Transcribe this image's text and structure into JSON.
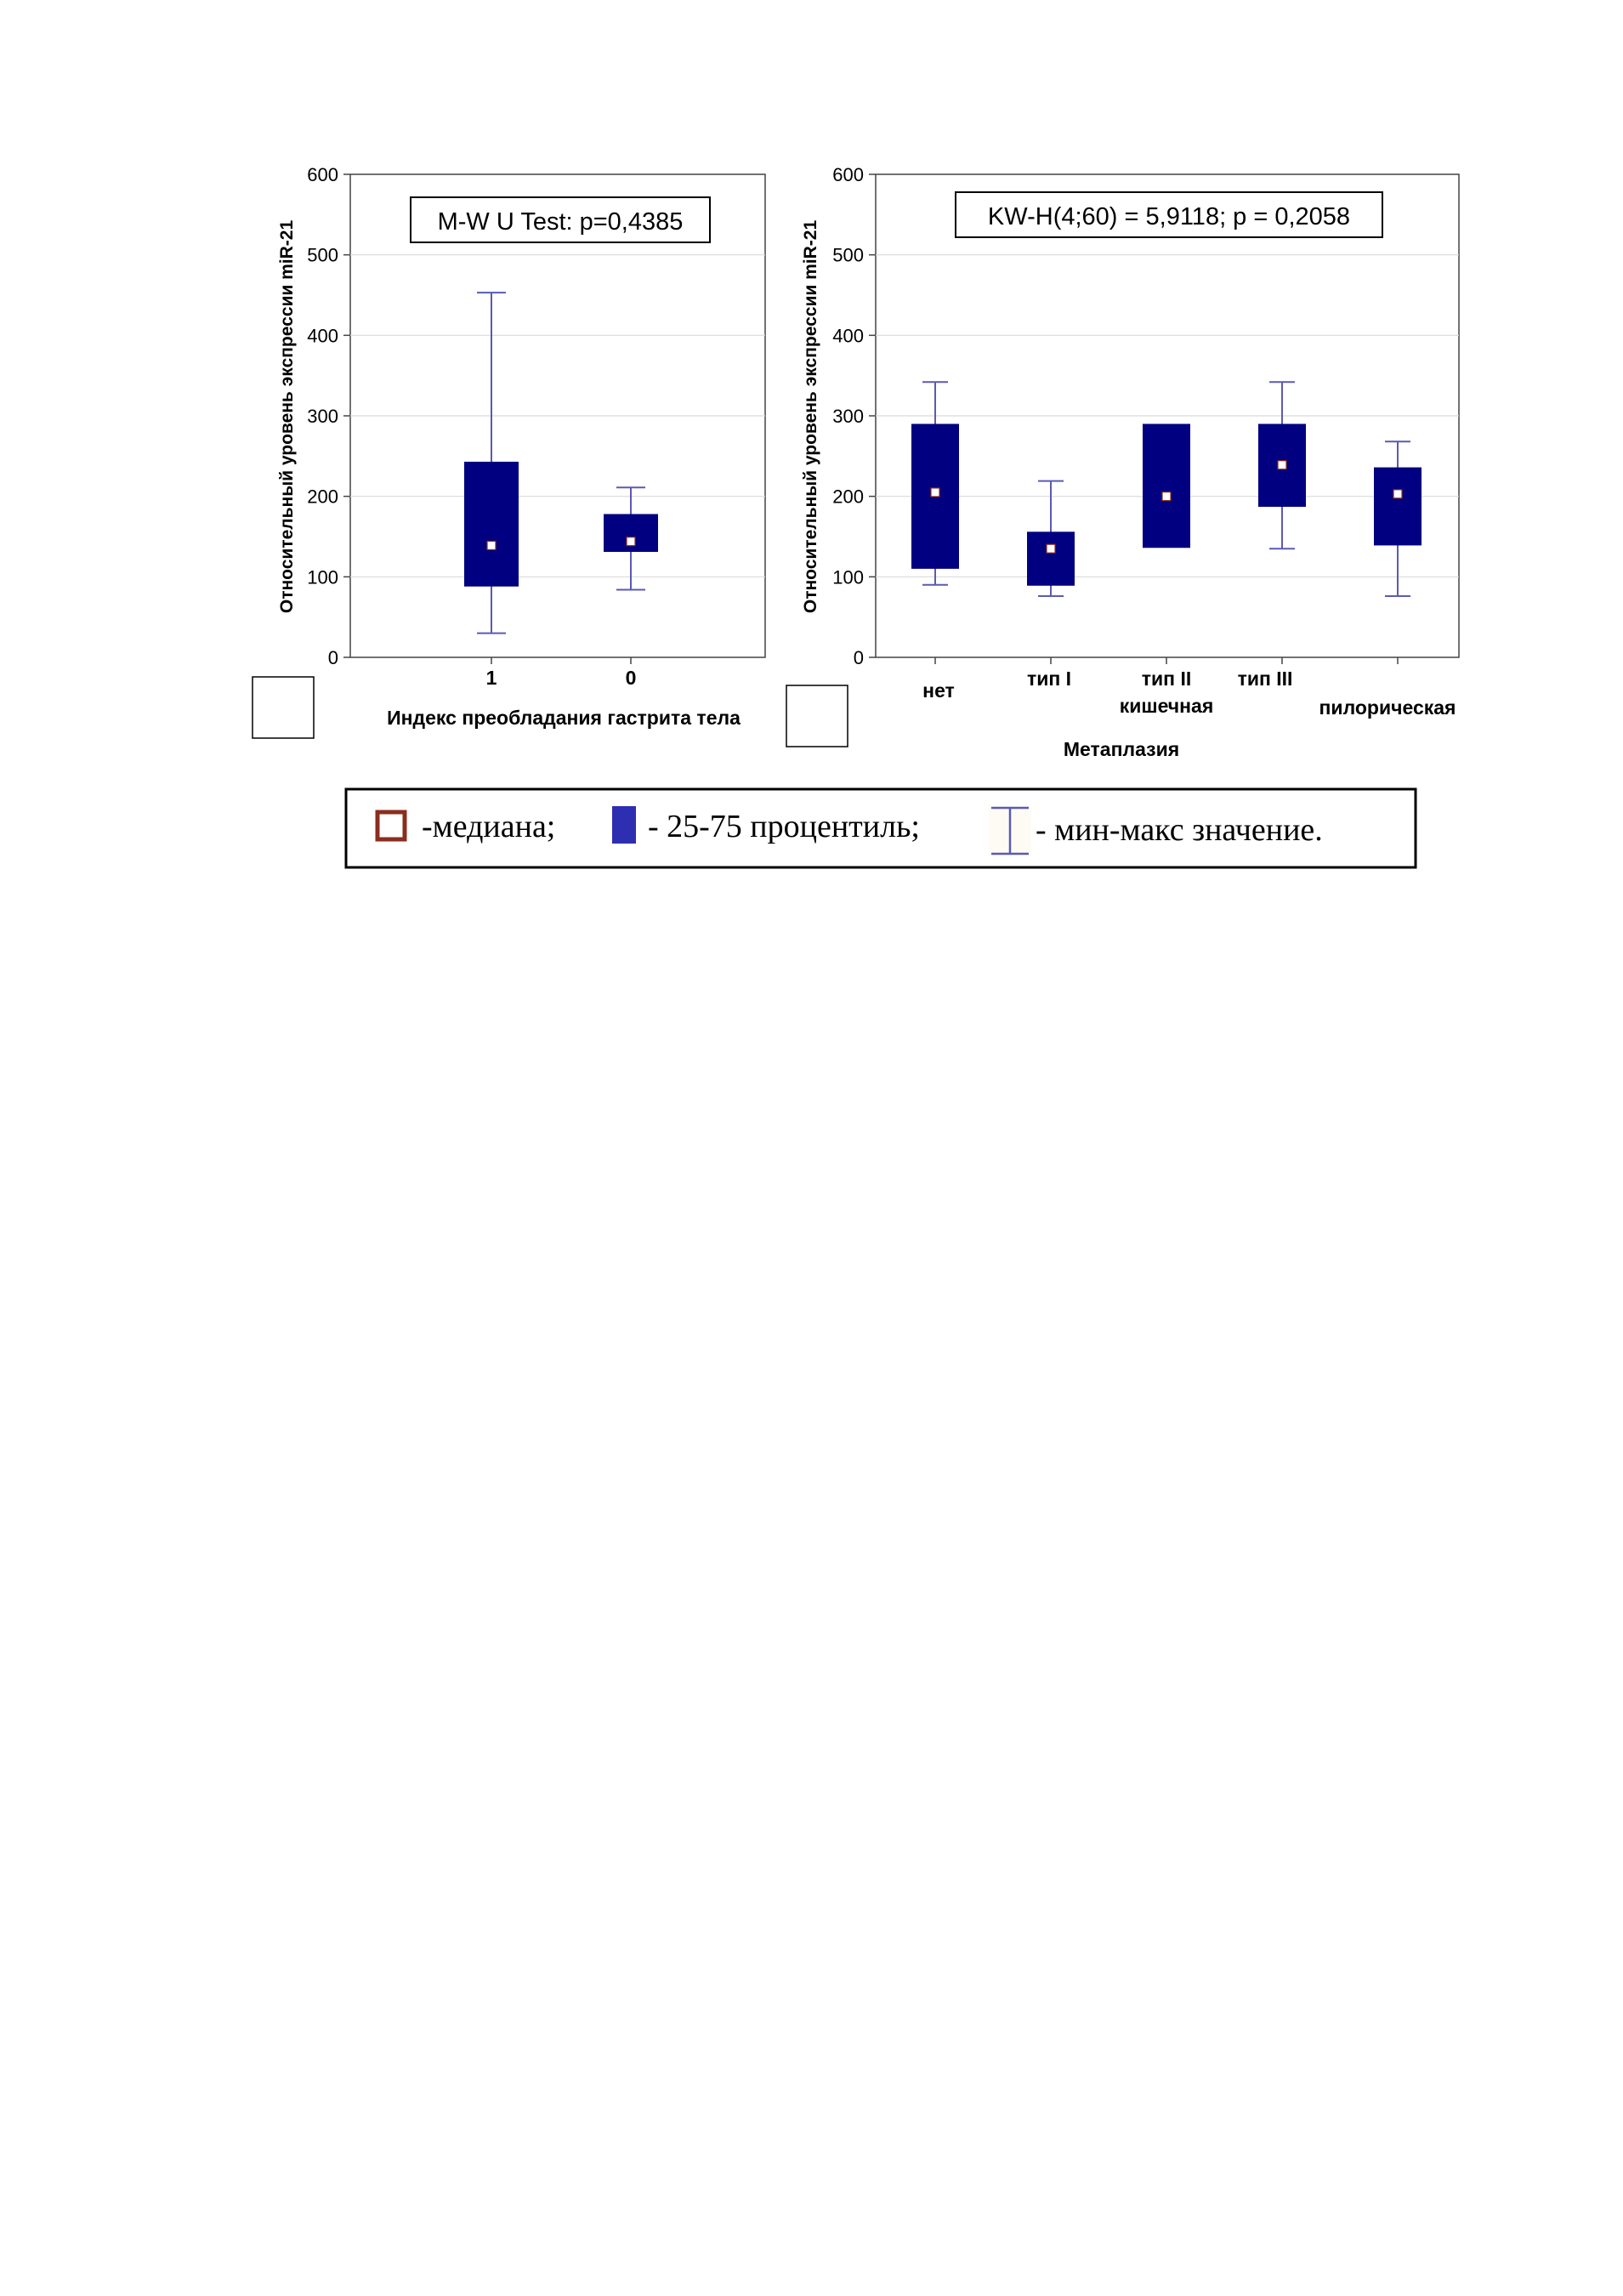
{
  "colors": {
    "box_fill": "#000080",
    "whisker": "#5a5ab4",
    "median_fill": "#ffffff",
    "median_border": "#8b2d1d",
    "legend_box_fill": "#2e2eb0",
    "grid": "#d9d9d9",
    "axis": "#444444",
    "text": "#000000"
  },
  "chart_data": [
    {
      "type": "box",
      "xlabel": "Индекс преобладания гастрита тела",
      "ylabel": "Относительный уровень экспрессии miR-21",
      "ylim": [
        0,
        600
      ],
      "yticks": [
        0,
        100,
        200,
        300,
        400,
        500,
        600
      ],
      "grid": true,
      "annotation": "M-W U Test: p=0,4385",
      "categories": [
        "1",
        "0"
      ],
      "boxes": [
        {
          "category": "1",
          "min": 30,
          "q1": 88,
          "median": 139,
          "q3": 243,
          "max": 453
        },
        {
          "category": "0",
          "min": 84,
          "q1": 131,
          "median": 144,
          "q3": 178,
          "max": 211
        }
      ]
    },
    {
      "type": "box",
      "xlabel": "Метаплазия",
      "ylabel": "Относительный уровень экспрессии miR-21",
      "ylim": [
        0,
        600
      ],
      "yticks": [
        0,
        100,
        200,
        300,
        400,
        500,
        600
      ],
      "grid": true,
      "annotation": "KW-H(4;60) = 5,9118; p = 0,2058",
      "categories": [
        "нет",
        "тип I",
        "тип II кишечная",
        "тип III",
        "пилорическая"
      ],
      "category_label_lines": [
        [
          "нет"
        ],
        [
          "тип I"
        ],
        [
          "тип II",
          "кишечная"
        ],
        [
          "тип III"
        ],
        [
          "пилорическая"
        ]
      ],
      "boxes": [
        {
          "category": "нет",
          "min": 90,
          "q1": 110,
          "median": 205,
          "q3": 290,
          "max": 342
        },
        {
          "category": "тип I",
          "min": 76,
          "q1": 89,
          "median": 135,
          "q3": 156,
          "max": 219
        },
        {
          "category": "тип II кишечная",
          "min": null,
          "q1": 136,
          "median": 200,
          "q3": 290,
          "max": null
        },
        {
          "category": "тип III",
          "min": 135,
          "q1": 187,
          "median": 239,
          "q3": 290,
          "max": 342
        },
        {
          "category": "пилорическая",
          "min": 76,
          "q1": 139,
          "median": 203,
          "q3": 236,
          "max": 268
        }
      ]
    }
  ],
  "legend": {
    "median_label": "-медиана;",
    "box_label": "- 25-75 процентиль;",
    "whisker_label": "- мин-макс значение."
  }
}
